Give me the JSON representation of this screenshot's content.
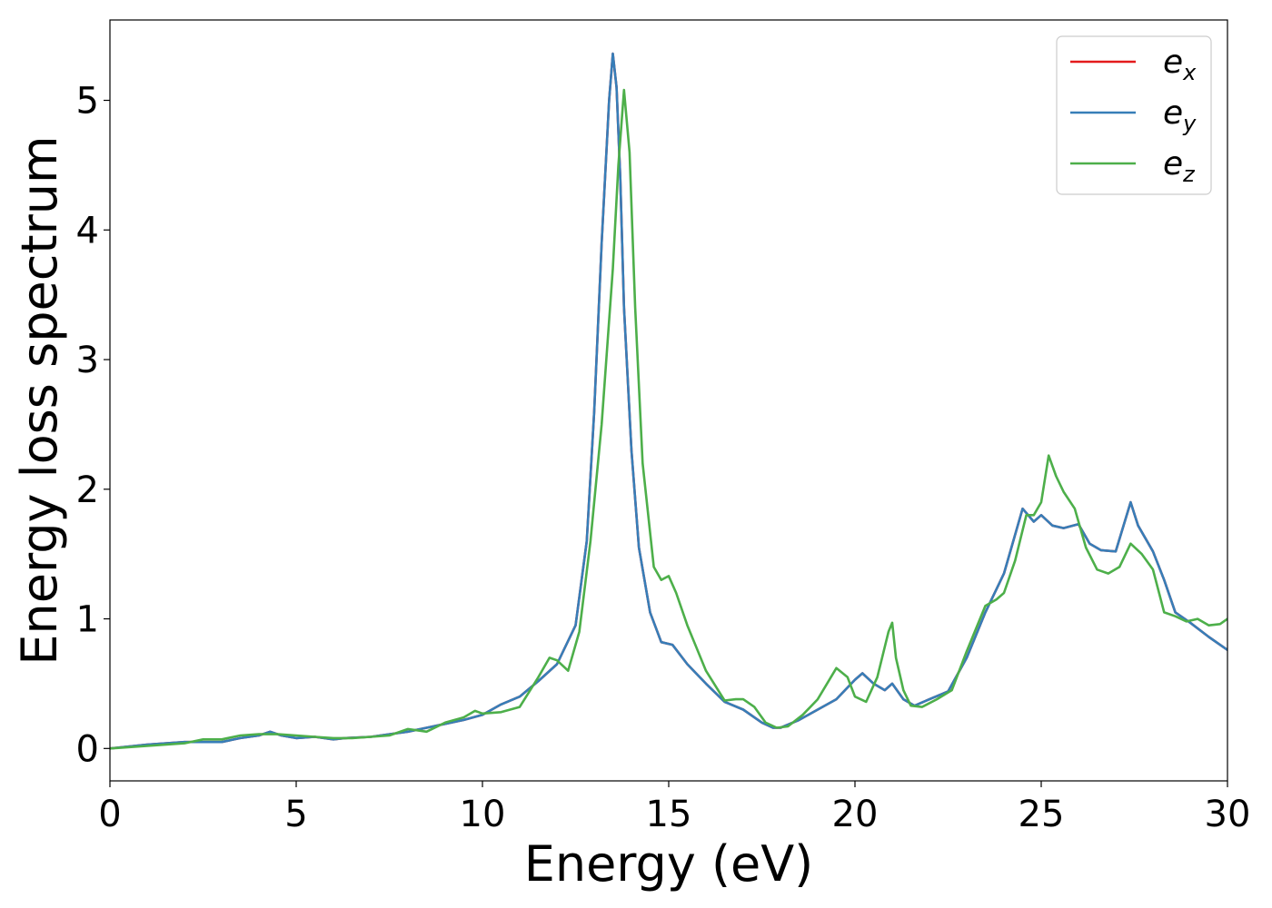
{
  "chart_data": {
    "type": "line",
    "xlabel": "Energy (eV)",
    "ylabel": "Energy loss spectrum",
    "xlim": [
      0,
      30
    ],
    "ylim": [
      -0.25,
      5.62
    ],
    "x_ticks": [
      "0",
      "5",
      "10",
      "15",
      "20",
      "25",
      "30"
    ],
    "y_ticks": [
      "0",
      "1",
      "2",
      "3",
      "4",
      "5"
    ],
    "grid": false,
    "legend_position": "top-right",
    "series": [
      {
        "name": "e",
        "subscript": "x",
        "color": "#e41a1c",
        "x": [
          0,
          1,
          2,
          3,
          3.5,
          4,
          4.3,
          4.6,
          5,
          5.5,
          6,
          6.3,
          7,
          7.5,
          8,
          8.5,
          9,
          9.5,
          10,
          10.5,
          11,
          11.5,
          12,
          12.5,
          12.8,
          13,
          13.2,
          13.4,
          13.5,
          13.6,
          13.7,
          13.8,
          14,
          14.2,
          14.5,
          14.8,
          15.1,
          15.5,
          16,
          16.5,
          17,
          17.5,
          17.8,
          18,
          18.5,
          19,
          19.5,
          20,
          20.2,
          20.5,
          20.8,
          21,
          21.3,
          21.6,
          22,
          22.5,
          23,
          23.5,
          24,
          24.5,
          24.8,
          25,
          25.3,
          25.6,
          26,
          26.3,
          26.6,
          27,
          27.4,
          27.6,
          28,
          28.3,
          28.6,
          29,
          29.5,
          30
        ],
        "y": [
          0,
          0.03,
          0.05,
          0.05,
          0.08,
          0.1,
          0.13,
          0.1,
          0.08,
          0.09,
          0.07,
          0.08,
          0.09,
          0.11,
          0.13,
          0.16,
          0.19,
          0.22,
          0.26,
          0.34,
          0.4,
          0.52,
          0.65,
          0.95,
          1.6,
          2.6,
          3.9,
          5.0,
          5.36,
          5.1,
          4.4,
          3.4,
          2.3,
          1.55,
          1.05,
          0.82,
          0.8,
          0.65,
          0.5,
          0.36,
          0.3,
          0.2,
          0.16,
          0.16,
          0.22,
          0.3,
          0.38,
          0.53,
          0.58,
          0.5,
          0.45,
          0.5,
          0.38,
          0.33,
          0.38,
          0.44,
          0.7,
          1.05,
          1.35,
          1.85,
          1.75,
          1.8,
          1.72,
          1.7,
          1.73,
          1.58,
          1.53,
          1.52,
          1.9,
          1.72,
          1.52,
          1.3,
          1.05,
          0.97,
          0.86,
          0.76
        ]
      },
      {
        "name": "e",
        "subscript": "y",
        "color": "#377eb8",
        "x": [
          0,
          1,
          2,
          3,
          3.5,
          4,
          4.3,
          4.6,
          5,
          5.5,
          6,
          6.3,
          7,
          7.5,
          8,
          8.5,
          9,
          9.5,
          10,
          10.5,
          11,
          11.5,
          12,
          12.5,
          12.8,
          13,
          13.2,
          13.4,
          13.5,
          13.6,
          13.7,
          13.8,
          14,
          14.2,
          14.5,
          14.8,
          15.1,
          15.5,
          16,
          16.5,
          17,
          17.5,
          17.8,
          18,
          18.5,
          19,
          19.5,
          20,
          20.2,
          20.5,
          20.8,
          21,
          21.3,
          21.6,
          22,
          22.5,
          23,
          23.5,
          24,
          24.5,
          24.8,
          25,
          25.3,
          25.6,
          26,
          26.3,
          26.6,
          27,
          27.4,
          27.6,
          28,
          28.3,
          28.6,
          29,
          29.5,
          30
        ],
        "y": [
          0,
          0.03,
          0.05,
          0.05,
          0.08,
          0.1,
          0.13,
          0.1,
          0.08,
          0.09,
          0.07,
          0.08,
          0.09,
          0.11,
          0.13,
          0.16,
          0.19,
          0.22,
          0.26,
          0.34,
          0.4,
          0.52,
          0.65,
          0.95,
          1.6,
          2.6,
          3.9,
          5.0,
          5.36,
          5.1,
          4.4,
          3.4,
          2.3,
          1.55,
          1.05,
          0.82,
          0.8,
          0.65,
          0.5,
          0.36,
          0.3,
          0.2,
          0.16,
          0.16,
          0.22,
          0.3,
          0.38,
          0.53,
          0.58,
          0.5,
          0.45,
          0.5,
          0.38,
          0.33,
          0.38,
          0.44,
          0.7,
          1.05,
          1.35,
          1.85,
          1.75,
          1.8,
          1.72,
          1.7,
          1.73,
          1.58,
          1.53,
          1.52,
          1.9,
          1.72,
          1.52,
          1.3,
          1.05,
          0.97,
          0.86,
          0.76
        ]
      },
      {
        "name": "e",
        "subscript": "z",
        "color": "#4daf4a",
        "x": [
          0,
          1,
          2,
          2.5,
          3,
          3.5,
          4,
          4.5,
          5,
          5.5,
          6,
          6.5,
          7,
          7.5,
          8,
          8.5,
          9,
          9.5,
          9.8,
          10,
          10.5,
          11,
          11.5,
          11.8,
          12,
          12.3,
          12.6,
          12.9,
          13.2,
          13.5,
          13.65,
          13.8,
          13.95,
          14.1,
          14.3,
          14.6,
          14.8,
          15,
          15.2,
          15.5,
          16,
          16.5,
          16.8,
          17,
          17.3,
          17.6,
          17.9,
          18.2,
          18.6,
          19,
          19.5,
          19.8,
          20,
          20.3,
          20.6,
          20.9,
          21,
          21.1,
          21.3,
          21.5,
          21.8,
          22.2,
          22.6,
          23,
          23.5,
          23.8,
          24,
          24.3,
          24.6,
          24.8,
          25,
          25.2,
          25.4,
          25.6,
          25.9,
          26.2,
          26.5,
          26.8,
          27.1,
          27.4,
          27.7,
          28,
          28.3,
          28.6,
          28.9,
          29.2,
          29.5,
          29.8,
          30
        ],
        "y": [
          0,
          0.02,
          0.04,
          0.07,
          0.07,
          0.1,
          0.11,
          0.11,
          0.1,
          0.09,
          0.08,
          0.08,
          0.09,
          0.1,
          0.15,
          0.13,
          0.2,
          0.24,
          0.29,
          0.27,
          0.28,
          0.32,
          0.55,
          0.7,
          0.68,
          0.6,
          0.9,
          1.6,
          2.5,
          3.7,
          4.5,
          5.08,
          4.6,
          3.4,
          2.2,
          1.4,
          1.3,
          1.33,
          1.2,
          0.95,
          0.6,
          0.37,
          0.38,
          0.38,
          0.32,
          0.2,
          0.16,
          0.17,
          0.26,
          0.38,
          0.62,
          0.55,
          0.4,
          0.36,
          0.55,
          0.9,
          0.97,
          0.7,
          0.45,
          0.33,
          0.32,
          0.38,
          0.45,
          0.75,
          1.1,
          1.15,
          1.2,
          1.45,
          1.8,
          1.8,
          1.9,
          2.26,
          2.1,
          1.98,
          1.85,
          1.55,
          1.38,
          1.35,
          1.4,
          1.58,
          1.5,
          1.38,
          1.05,
          1.02,
          0.98,
          1.0,
          0.95,
          0.96,
          1.0
        ]
      }
    ]
  }
}
